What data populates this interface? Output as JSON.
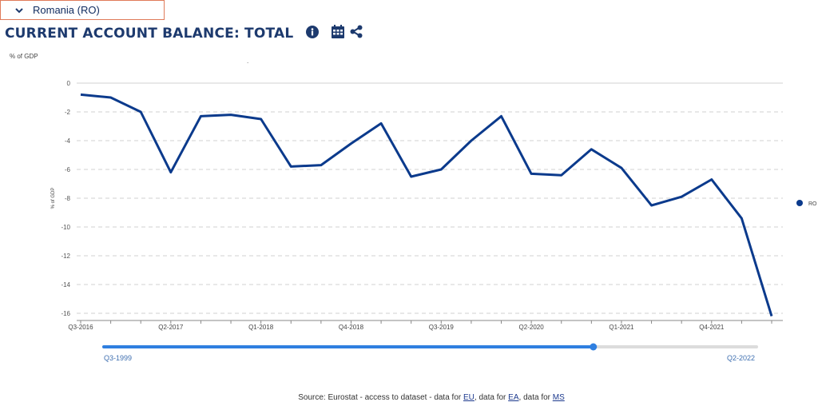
{
  "country_select": {
    "label": "Romania (RO)",
    "icon": "chevron-down-icon"
  },
  "title": "CURRENT ACCOUNT BALANCE: TOTAL",
  "icons": {
    "info": "info-icon",
    "calendar": "calendar-icon",
    "share": "share-icon"
  },
  "unit_label": "% of GDP",
  "top_mark": ".",
  "chart_data": {
    "type": "line",
    "ylabel": "% of GDP",
    "ylim": [
      -16.5,
      0
    ],
    "yticks": [
      0,
      -2,
      -4,
      -6,
      -8,
      -10,
      -12,
      -14,
      -16
    ],
    "grid": true,
    "legend_position": "right",
    "x_tick_labels": [
      "Q3-2016",
      "Q2-2017",
      "Q1-2018",
      "Q4-2018",
      "Q3-2019",
      "Q2-2020",
      "Q1-2021",
      "Q4-2021"
    ],
    "x": [
      "Q3-2016",
      "Q4-2016",
      "Q1-2017",
      "Q2-2017",
      "Q3-2017",
      "Q4-2017",
      "Q1-2018",
      "Q2-2018",
      "Q3-2018",
      "Q4-2018",
      "Q1-2019",
      "Q2-2019",
      "Q3-2019",
      "Q4-2019",
      "Q1-2020",
      "Q2-2020",
      "Q3-2020",
      "Q4-2020",
      "Q1-2021",
      "Q2-2021",
      "Q3-2021",
      "Q4-2021",
      "Q1-2022",
      "Q2-2022"
    ],
    "series": [
      {
        "name": "RO",
        "color": "#0b3a8c",
        "values": [
          -0.8,
          -1.0,
          -2.0,
          -6.2,
          -2.3,
          -2.2,
          -2.5,
          -5.8,
          -5.7,
          -4.2,
          -2.8,
          -6.5,
          -6.0,
          -4.0,
          -2.3,
          -6.3,
          -6.4,
          -4.6,
          -5.9,
          -8.5,
          -7.9,
          -6.7,
          -9.4,
          -16.2
        ]
      }
    ]
  },
  "slider": {
    "start_label": "Q3-1999",
    "end_label": "Q2-2022",
    "position": 0.75,
    "fill_color": "#2f7fe0"
  },
  "source": {
    "prefix": "Source: Eurostat - access to dataset - data for ",
    "eu": "EU",
    "sep1": ", data for ",
    "ea": "EA",
    "sep2": ", data for ",
    "ms": "MS"
  }
}
